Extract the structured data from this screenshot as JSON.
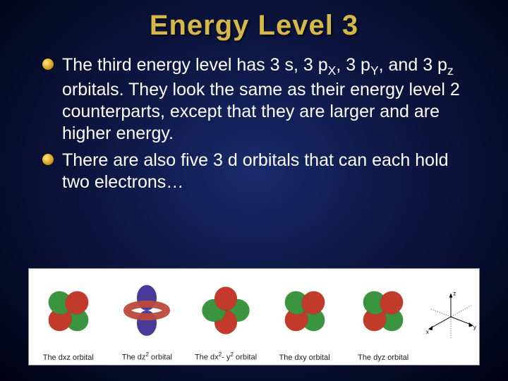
{
  "title": "Energy Level 3",
  "title_color": "#d6b84a",
  "title_fontsize": 40,
  "background_gradient": [
    "#1a2a6c",
    "#0d1640",
    "#050a25",
    "#000010"
  ],
  "bullet_icon_colors": [
    "#ffe680",
    "#d4a020",
    "#8a5a00"
  ],
  "text_color": "#ffffff",
  "body_fontsize": 25,
  "bullets": [
    {
      "text_parts": [
        {
          "t": "The third energy level has 3 s, 3 p"
        },
        {
          "t": "X",
          "sub": true
        },
        {
          "t": ", 3 p"
        },
        {
          "t": "Y",
          "sub": true
        },
        {
          "t": ", and 3 p"
        },
        {
          "t": "z",
          "sub": true
        },
        {
          "t": " orbitals.  They look the same as their energy level 2 counterparts, except that they are larger and are higher energy."
        }
      ]
    },
    {
      "text_parts": [
        {
          "t": "There are also five 3 d orbitals that can each hold two electrons…"
        }
      ]
    }
  ],
  "orbital_strip": {
    "background": "#ffffff",
    "label_fontsize": 11,
    "label_color": "#222222",
    "lobe_colors": {
      "red": "#c23a2a",
      "green": "#3a9440",
      "blue": "#4a3a9a",
      "torus": "#b84a3a"
    },
    "orbitals": [
      {
        "name": "dxz",
        "label_html": "The dxz orbital",
        "type": "clover",
        "rot": 45
      },
      {
        "name": "dz2",
        "label_html": "The dz<sup>2</sup> orbital",
        "type": "dz2"
      },
      {
        "name": "dx2y2",
        "label_html": "The dx<sup>2</sup>- y<sup>2</sup> orbital",
        "type": "clover",
        "rot": 0
      },
      {
        "name": "dxy",
        "label_html": "The dxy orbital",
        "type": "clover",
        "rot": 45
      },
      {
        "name": "dyz",
        "label_html": "The dyz orbital",
        "type": "clover",
        "rot": 45
      }
    ],
    "axes": {
      "labels": [
        "x",
        "y",
        "z"
      ],
      "color": "#000000",
      "fontsize": 10
    }
  }
}
